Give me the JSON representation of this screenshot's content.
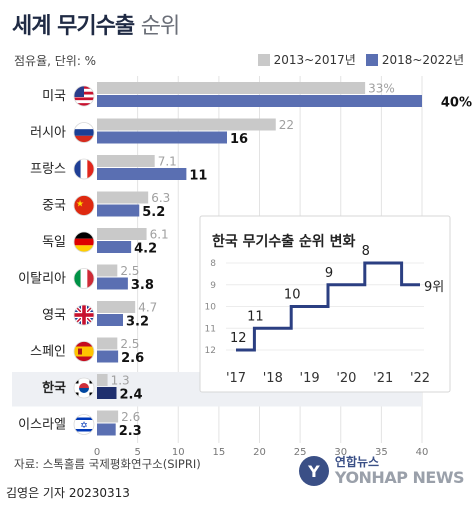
{
  "header": {
    "title_main": "세계 무기수출",
    "title_sub": "순위",
    "unit": "점유율, 단위: %"
  },
  "legend": {
    "a": "2013~2017년",
    "b": "2018~2022년"
  },
  "colors": {
    "gray": "#c9c9c9",
    "blue": "#5a6fb2",
    "korea_blue": "#1f2f6e",
    "step": "#2b3f82"
  },
  "chart_data": [
    {
      "type": "bar",
      "orientation": "horizontal",
      "categories": [
        "미국",
        "러시아",
        "프랑스",
        "중국",
        "독일",
        "이탈리아",
        "영국",
        "스페인",
        "한국",
        "이스라엘"
      ],
      "series": [
        {
          "name": "2013~2017년",
          "values": [
            33,
            22,
            7.1,
            6.3,
            6.1,
            2.5,
            4.7,
            2.5,
            1.3,
            2.6
          ]
        },
        {
          "name": "2018~2022년",
          "values": [
            40,
            16,
            11,
            5.2,
            4.2,
            3.8,
            3.2,
            2.6,
            2.4,
            2.3
          ]
        }
      ],
      "value_labels_a": [
        "33%",
        "22",
        "7.1",
        "6.3",
        "6.1",
        "2.5",
        "4.7",
        "2.5",
        "1.3",
        "2.6"
      ],
      "value_labels_b": [
        "40%",
        "16",
        "11",
        "5.2",
        "4.2",
        "3.8",
        "3.2",
        "2.6",
        "2.4",
        "2.3"
      ],
      "highlight": "한국",
      "xlim": [
        0,
        40
      ],
      "xticks": [
        "0",
        "5",
        "10",
        "15",
        "20",
        "25",
        "30",
        "35",
        "40"
      ],
      "grid": true
    },
    {
      "type": "line",
      "title": "한국 무기수출 순위 변화",
      "x": [
        "'17",
        "'18",
        "'19",
        "'20",
        "'21",
        "'22"
      ],
      "y": [
        12,
        11,
        10,
        9,
        8,
        9
      ],
      "point_labels": [
        "12",
        "11",
        "10",
        "9",
        "8",
        "9위"
      ],
      "yticks": [
        "8",
        "9",
        "10",
        "11",
        "12"
      ],
      "ylim": [
        12,
        8
      ],
      "step": true
    }
  ],
  "footer": {
    "source": "자료: 스톡홀름 국제평화연구소(SIPRI)",
    "credit": "김영은 기자  20230313",
    "logo_ko": "연합뉴스",
    "logo_en": "YONHAP NEWS",
    "logo_mark": "Y"
  }
}
